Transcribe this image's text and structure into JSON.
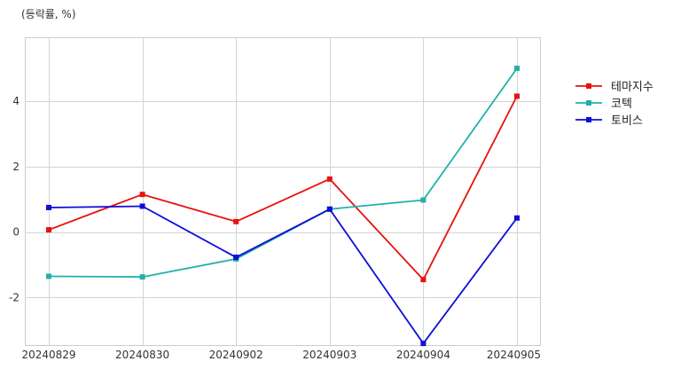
{
  "chart_data": {
    "type": "line",
    "unit_label": "(등락률, %)",
    "x": [
      "20240829",
      "20240830",
      "20240902",
      "20240903",
      "20240904",
      "20240905"
    ],
    "y_ticks": [
      "-2",
      "0",
      "2",
      "4"
    ],
    "ylim": [
      -3.45,
      5.95
    ],
    "grid": true,
    "legend_position": "right",
    "series": [
      {
        "name": "테마지수",
        "color": "#e8120c",
        "values": [
          0.07,
          1.15,
          0.32,
          1.62,
          -1.45,
          4.15
        ]
      },
      {
        "name": "코텍",
        "color": "#22b0aa",
        "values": [
          -1.35,
          -1.37,
          -0.82,
          0.7,
          0.98,
          5.0
        ]
      },
      {
        "name": "토비스",
        "color": "#0d0ed6",
        "values": [
          0.75,
          0.79,
          -0.77,
          0.7,
          -3.4,
          0.43
        ]
      }
    ]
  }
}
